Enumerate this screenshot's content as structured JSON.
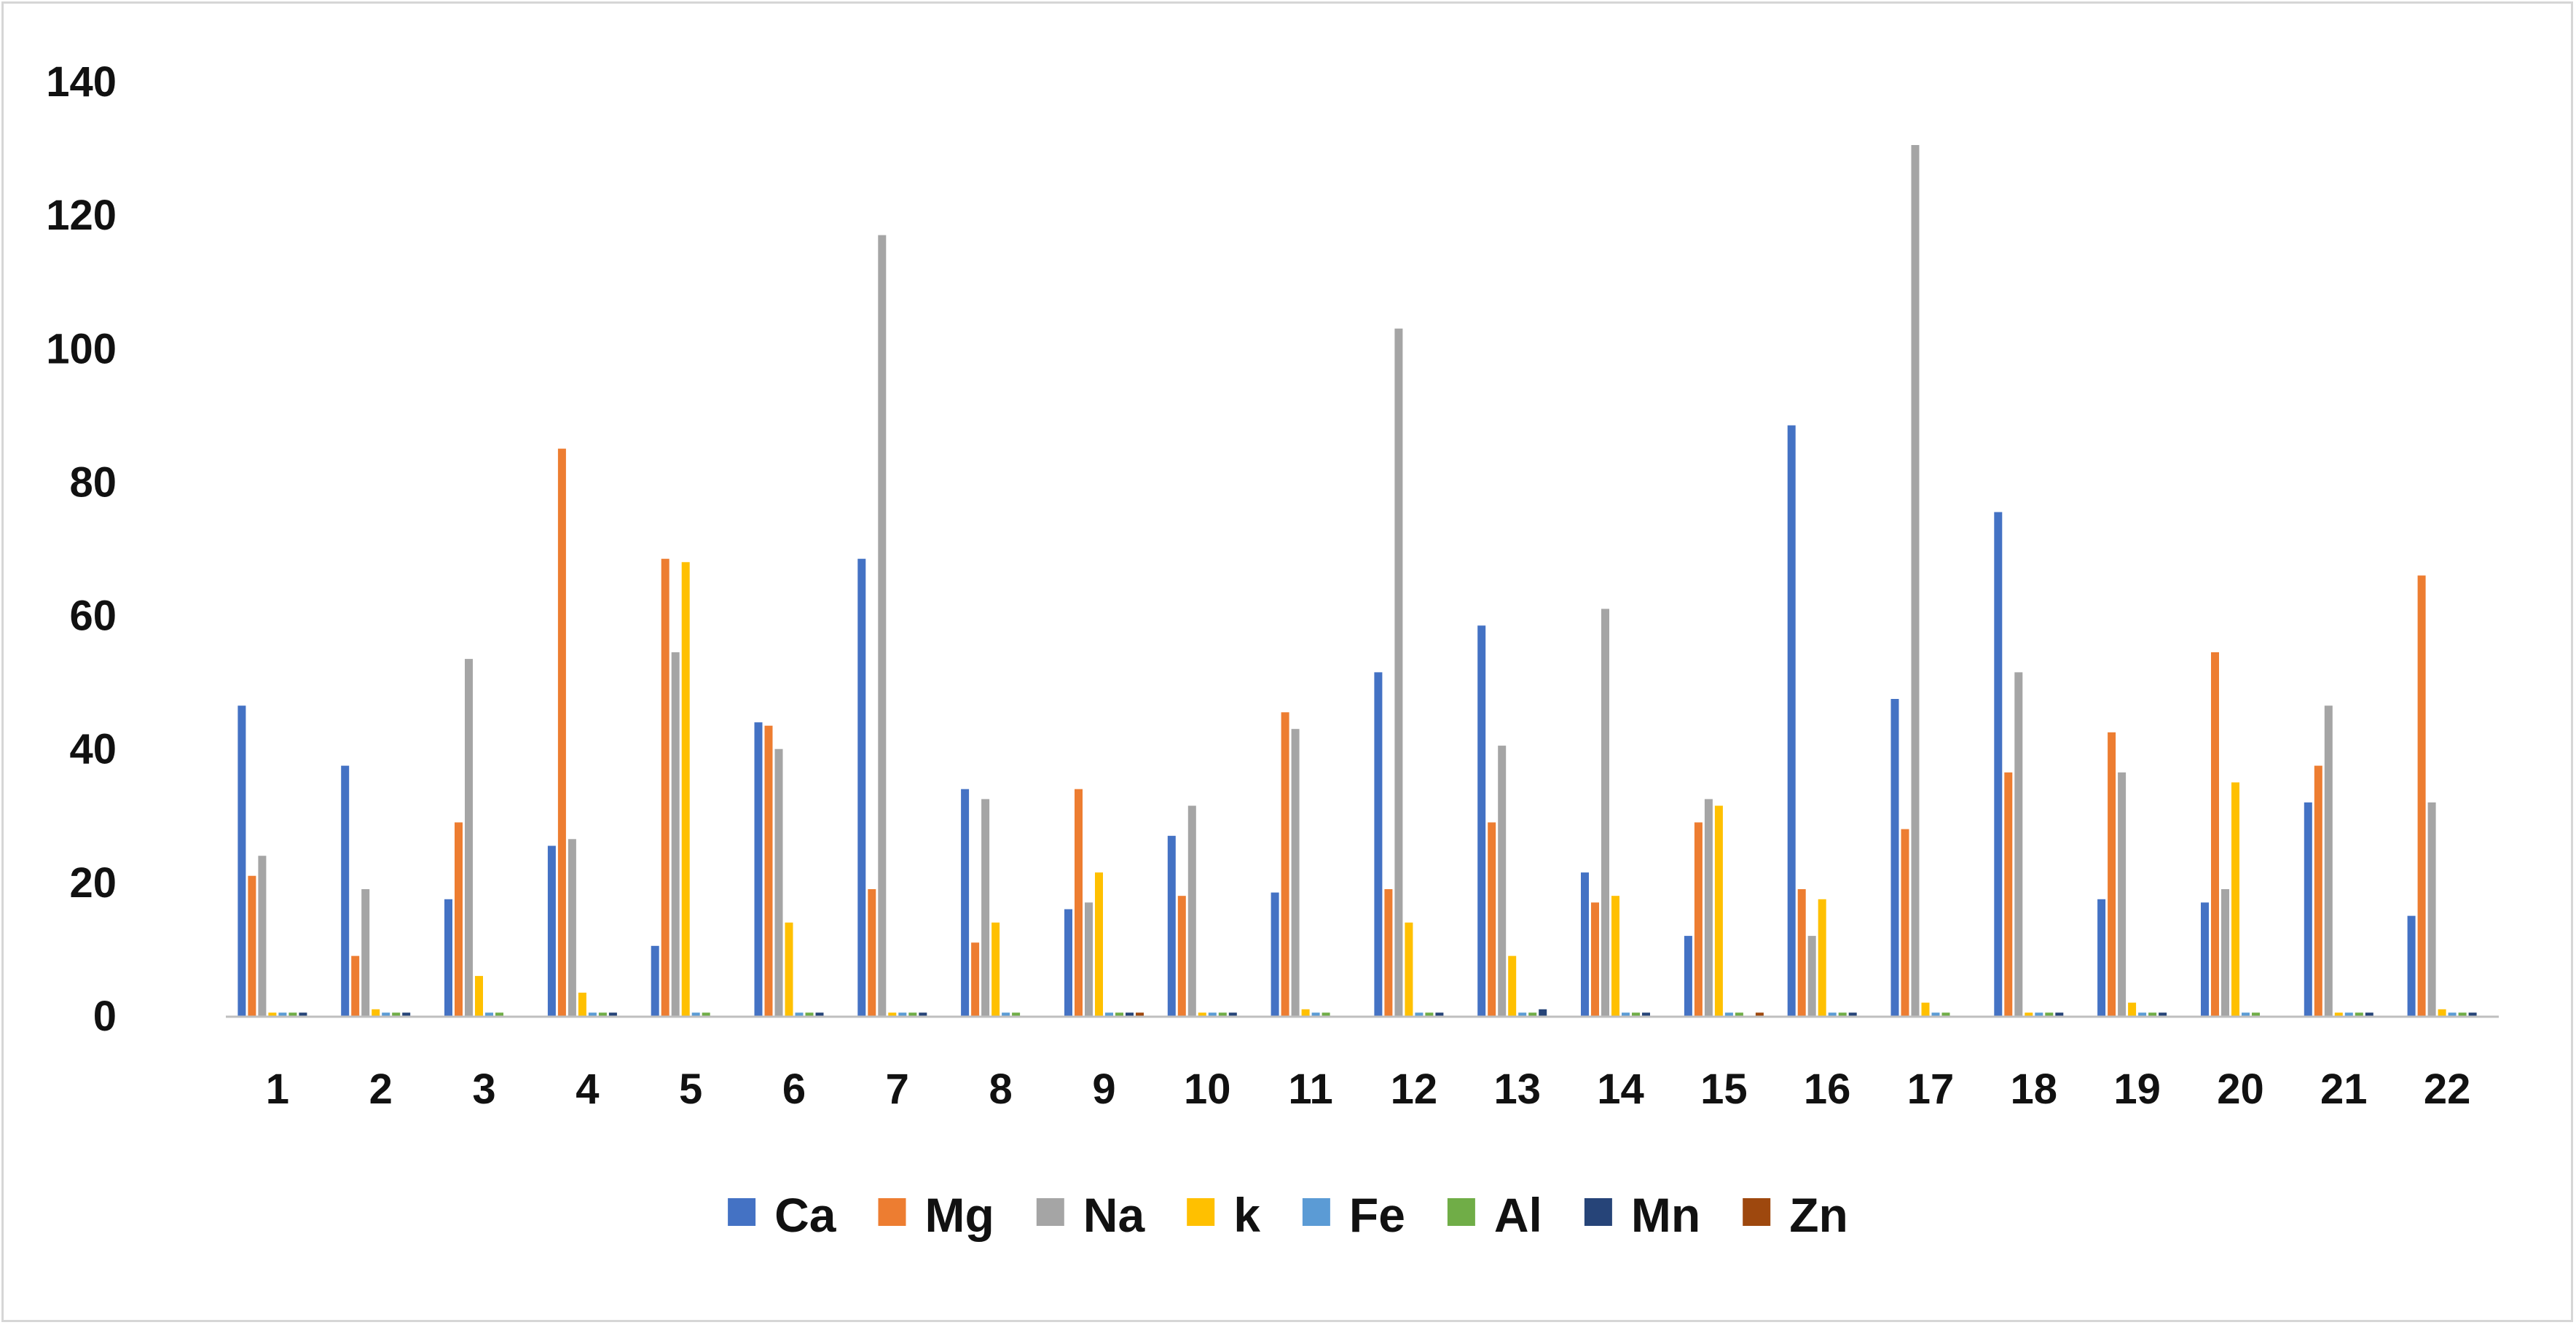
{
  "chart_data": {
    "type": "bar",
    "categories": [
      "1",
      "2",
      "3",
      "4",
      "5",
      "6",
      "7",
      "8",
      "9",
      "10",
      "11",
      "12",
      "13",
      "14",
      "15",
      "16",
      "17",
      "18",
      "19",
      "20",
      "21",
      "22"
    ],
    "ylim": [
      0,
      140
    ],
    "yticks": [
      0,
      20,
      40,
      60,
      80,
      100,
      120,
      140
    ],
    "grid": false,
    "legend_position": "bottom",
    "series": [
      {
        "name": "Ca",
        "color": "#4472C4",
        "values": [
          46.5,
          37.5,
          17.5,
          25.5,
          10.5,
          44,
          68.5,
          34,
          16,
          27,
          18.5,
          51.5,
          58.5,
          21.5,
          12,
          88.5,
          47.5,
          75.5,
          17.5,
          17,
          32,
          15
        ]
      },
      {
        "name": "Mg",
        "color": "#ED7D31",
        "values": [
          21,
          9,
          29,
          85,
          68.5,
          43.5,
          19,
          11,
          34,
          18,
          45.5,
          19,
          29,
          17,
          29,
          19,
          28,
          36.5,
          42.5,
          54.5,
          37.5,
          66
        ]
      },
      {
        "name": "Na",
        "color": "#A5A5A5",
        "values": [
          24,
          19,
          53.5,
          26.5,
          54.5,
          40,
          117,
          32.5,
          17,
          31.5,
          43,
          103,
          40.5,
          61,
          32.5,
          12,
          130.5,
          51.5,
          36.5,
          19,
          46.5,
          32
        ]
      },
      {
        "name": "k",
        "color": "#FFC000",
        "values": [
          0.5,
          1,
          6,
          3.5,
          68,
          14,
          0.5,
          14,
          21.5,
          0.5,
          1,
          14,
          9,
          18,
          31.5,
          17.5,
          2,
          0.5,
          2,
          35,
          0.5,
          1
        ]
      },
      {
        "name": "Fe",
        "color": "#5B9BD5",
        "values": [
          0.5,
          0.5,
          0.5,
          0.5,
          0.5,
          0.5,
          0.5,
          0.5,
          0.5,
          0.5,
          0.5,
          0.5,
          0.5,
          0.5,
          0.5,
          0.5,
          0.5,
          0.5,
          0.5,
          0.5,
          0.5,
          0.5
        ]
      },
      {
        "name": "Al",
        "color": "#70AD47",
        "values": [
          0.5,
          0.5,
          0.5,
          0.5,
          0.5,
          0.5,
          0.5,
          0.5,
          0.5,
          0.5,
          0.5,
          0.5,
          0.5,
          0.5,
          0.5,
          0.5,
          0.5,
          0.5,
          0.5,
          0.5,
          0.5,
          0.5
        ]
      },
      {
        "name": "Mn",
        "color": "#264478",
        "values": [
          0.5,
          0.5,
          0,
          0.5,
          0,
          0.5,
          0.5,
          0,
          0.5,
          0.5,
          0,
          0.5,
          1,
          0.5,
          0,
          0.5,
          0,
          0.5,
          0.5,
          0,
          0.5,
          0.5
        ]
      },
      {
        "name": "Zn",
        "color": "#9E480E",
        "values": [
          0,
          0,
          0,
          0,
          0,
          0,
          0,
          0,
          0.5,
          0,
          0,
          0,
          0,
          0,
          0.5,
          0,
          0,
          0,
          0,
          0,
          0,
          0
        ]
      }
    ]
  }
}
